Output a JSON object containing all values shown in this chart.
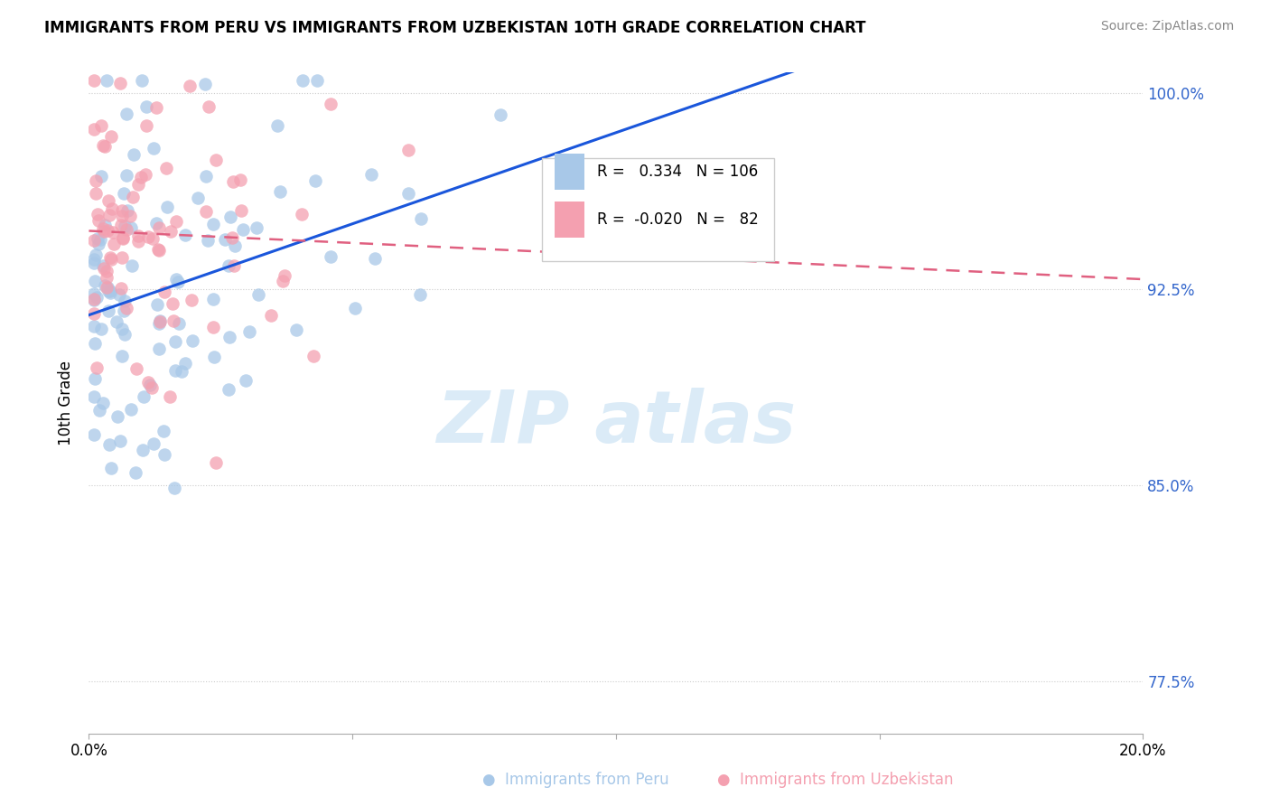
{
  "title": "IMMIGRANTS FROM PERU VS IMMIGRANTS FROM UZBEKISTAN 10TH GRADE CORRELATION CHART",
  "source": "Source: ZipAtlas.com",
  "ylabel": "10th Grade",
  "xlim": [
    0.0,
    0.2
  ],
  "ylim": [
    0.755,
    1.008
  ],
  "xticks": [
    0.0,
    0.05,
    0.1,
    0.15,
    0.2
  ],
  "xticklabels": [
    "0.0%",
    "",
    "",
    "",
    "20.0%"
  ],
  "yticks": [
    0.775,
    0.85,
    0.925,
    1.0
  ],
  "yticklabels": [
    "77.5%",
    "85.0%",
    "92.5%",
    "100.0%"
  ],
  "blue_color": "#a8c8e8",
  "pink_color": "#f4a0b0",
  "trend_blue": "#1a56db",
  "trend_pink": "#e06080",
  "legend_r_blue": "0.334",
  "legend_n_blue": "106",
  "legend_r_pink": "-0.020",
  "legend_n_pink": "82",
  "watermark_text": "ZIPatlas",
  "seed": 42
}
